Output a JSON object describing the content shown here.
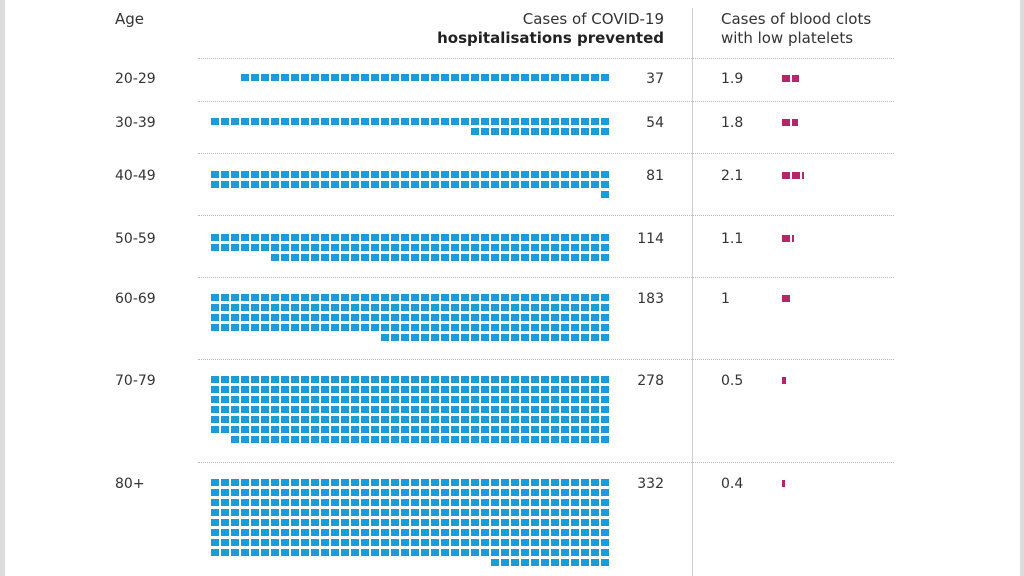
{
  "headers": {
    "age": "Age",
    "cases_line1": "Cases of COVID-19",
    "cases_line2": "hospitalisations prevented",
    "clots_line1": "Cases of blood clots",
    "clots_line2": "with low platelets"
  },
  "chart_data": {
    "type": "table",
    "title": "",
    "columns": [
      "Age",
      "Cases of COVID-19 hospitalisations prevented",
      "Cases of blood clots with low platelets"
    ],
    "rows": [
      {
        "age": "20-29",
        "prevented": 37,
        "prevented_label": "37",
        "clots": 1.9,
        "clots_label": "1.9"
      },
      {
        "age": "30-39",
        "prevented": 54,
        "prevented_label": "54",
        "clots": 1.8,
        "clots_label": "1.8"
      },
      {
        "age": "40-49",
        "prevented": 81,
        "prevented_label": "81",
        "clots": 2.1,
        "clots_label": "2.1"
      },
      {
        "age": "50-59",
        "prevented": 114,
        "prevented_label": "114",
        "clots": 1.1,
        "clots_label": "1.1"
      },
      {
        "age": "60-69",
        "prevented": 183,
        "prevented_label": "183",
        "clots": 1,
        "clots_label": "1"
      },
      {
        "age": "70-79",
        "prevented": 278,
        "prevented_label": "278",
        "clots": 0.5,
        "clots_label": "0.5"
      },
      {
        "age": "80+",
        "prevented": 332,
        "prevented_label": "332",
        "clots": 0.4,
        "clots_label": "0.4"
      }
    ],
    "colors": {
      "prevented": "#1b9bd9",
      "clots": "#b5256a"
    }
  }
}
